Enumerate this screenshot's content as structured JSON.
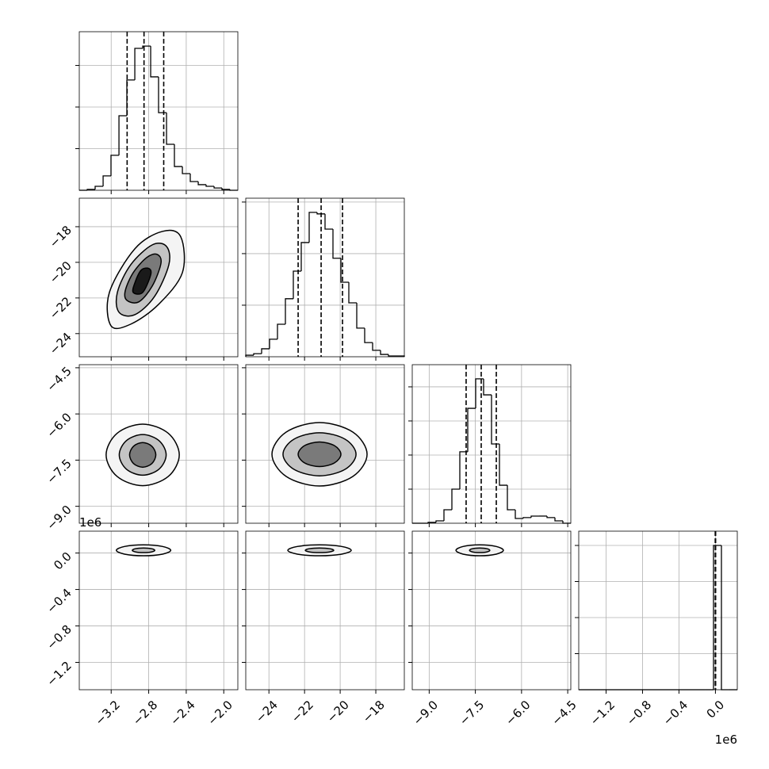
{
  "chart_data": {
    "type": "corner",
    "color": "#000000",
    "params": [
      {
        "lim": [
          -3.54,
          -1.85
        ],
        "ticks": [
          {
            "value": -3.2,
            "label": "−3.2"
          },
          {
            "value": -2.8,
            "label": "−2.8"
          },
          {
            "value": -2.4,
            "label": "−2.4"
          },
          {
            "value": -2.0,
            "label": "−2.0"
          }
        ]
      },
      {
        "lim": [
          -25.3,
          -16.4
        ],
        "ticks": [
          {
            "value": -24,
            "label": "−24"
          },
          {
            "value": -22,
            "label": "−22"
          },
          {
            "value": -20,
            "label": "−20"
          },
          {
            "value": -18,
            "label": "−18"
          }
        ]
      },
      {
        "lim": [
          -9.55,
          -4.4
        ],
        "ticks": [
          {
            "value": -9.0,
            "label": "−9.0"
          },
          {
            "value": -7.5,
            "label": "−7.5"
          },
          {
            "value": -6.0,
            "label": "−6.0"
          },
          {
            "value": -4.5,
            "label": "−4.5"
          }
        ]
      },
      {
        "lim": [
          -1.5,
          0.24
        ],
        "ticks": [
          {
            "value": -1.2,
            "label": "−1.2"
          },
          {
            "value": -0.8,
            "label": "−0.8"
          },
          {
            "value": -0.4,
            "label": "−0.4"
          },
          {
            "value": 0,
            "label": "0.0"
          }
        ],
        "x_offset": "1e6",
        "y_offset": "1e6"
      }
    ],
    "histograms": [
      {
        "bins": [
          -3.54,
          -3.455,
          -3.371,
          -3.286,
          -3.202,
          -3.117,
          -3.033,
          -2.948,
          -2.864,
          -2.779,
          -2.695,
          -2.61,
          -2.526,
          -2.441,
          -2.357,
          -2.272,
          -2.188,
          -2.103,
          -2.019,
          -1.934,
          -1.85
        ],
        "counts": [
          0,
          4,
          19,
          69,
          168,
          358,
          530,
          682,
          693,
          545,
          373,
          221,
          114,
          80,
          42,
          27,
          19,
          11,
          4,
          0
        ],
        "ylim": [
          0,
          762
        ],
        "yticks": [
          200,
          400,
          600
        ],
        "quantiles": [
          -3.03,
          -2.85,
          -2.64
        ]
      },
      {
        "bins": [
          -25.3,
          -24.855,
          -24.41,
          -23.965,
          -23.52,
          -23.075,
          -22.63,
          -22.185,
          -21.74,
          -21.295,
          -20.85,
          -20.405,
          -19.96,
          -19.515,
          -19.07,
          -18.625,
          -18.18,
          -17.735,
          -17.29,
          -16.845,
          -16.4
        ],
        "counts": [
          6,
          12,
          31,
          68,
          126,
          225,
          332,
          443,
          560,
          554,
          495,
          382,
          289,
          209,
          111,
          55,
          25,
          9,
          3,
          3
        ],
        "ylim": [
          0,
          615
        ],
        "yticks": [
          200,
          400,
          600
        ],
        "quantiles": [
          -22.36,
          -21.07,
          -19.87
        ]
      },
      {
        "bins": [
          -9.55,
          -9.2925,
          -9.035,
          -8.7775,
          -8.52,
          -8.2625,
          -8.005,
          -7.7475,
          -7.49,
          -7.2325,
          -6.975,
          -6.7175,
          -6.46,
          -6.2025,
          -5.945,
          -5.6875,
          -5.43,
          -5.1725,
          -4.915,
          -4.6575,
          -4.4
        ],
        "counts": [
          0,
          0,
          5,
          14,
          79,
          200,
          419,
          674,
          847,
          753,
          465,
          223,
          79,
          28,
          33,
          42,
          42,
          33,
          14,
          0
        ],
        "ylim": [
          0,
          930
        ],
        "yticks": [
          200,
          400,
          600,
          800
        ],
        "quantiles": [
          -7.8,
          -7.31,
          -6.82
        ]
      },
      {
        "bins": [
          -1.5,
          -1.413,
          -1.326,
          -1.239,
          -1.152,
          -1.065,
          -0.978,
          -0.891,
          -0.804,
          -0.717,
          -0.63,
          -0.543,
          -0.456,
          -0.369,
          -0.282,
          -0.195,
          -0.108,
          -0.021,
          0.066,
          0.153,
          0.24
        ],
        "counts": [
          0,
          0,
          0,
          0,
          0,
          0,
          0,
          0,
          0,
          0,
          0,
          0,
          0,
          0,
          0,
          0,
          0,
          4000,
          0,
          0
        ],
        "ylim": [
          0,
          4396
        ],
        "yticks": [
          1000,
          2000,
          3000,
          4000
        ],
        "quantiles": [
          -0.002,
          0,
          0.002
        ]
      }
    ],
    "pairs": [
      {
        "contours": [
          {
            "x": [
              -3.202,
              -2.991,
              -2.695,
              -2.441,
              -2.458,
              -2.652,
              -2.948,
              -3.219
            ],
            "y": [
              -23.56,
              -23.47,
              -22.36,
              -20.58,
              -18.57,
              -18.26,
              -19.24,
              -21.69
            ]
          },
          {
            "x": [
              -3.117,
              -2.948,
              -2.737,
              -2.585,
              -2.61,
              -2.762,
              -2.991,
              -3.134
            ],
            "y": [
              -22.8,
              -22.94,
              -21.91,
              -20.13,
              -19.11,
              -19.02,
              -20.13,
              -21.69
            ]
          },
          {
            "x": [
              -3.033,
              -2.906,
              -2.762,
              -2.669,
              -2.712,
              -2.821,
              -2.965,
              -3.05
            ],
            "y": [
              -22.13,
              -22.22,
              -21.33,
              -20.04,
              -19.55,
              -19.73,
              -20.58,
              -21.6
            ]
          },
          {
            "x": [
              -2.965,
              -2.864,
              -2.779,
              -2.796,
              -2.881,
              -2.948
            ],
            "y": [
              -21.69,
              -21.69,
              -20.71,
              -20.35,
              -20.44,
              -21.16
            ]
          }
        ]
      },
      {
        "contours": [
          {
            "x": [
              -2.474,
              -2.591,
              -2.864,
              -3.137,
              -3.254,
              -3.137,
              -2.864,
              -2.591
            ],
            "y": [
              -7.33,
              -6.63,
              -6.33,
              -6.63,
              -7.33,
              -8.03,
              -8.33,
              -8.03
            ]
          },
          {
            "x": [
              -2.614,
              -2.689,
              -2.864,
              -3.039,
              -3.114,
              -3.039,
              -2.864,
              -2.689
            ],
            "y": [
              -7.33,
              -6.87,
              -6.67,
              -6.87,
              -7.33,
              -7.79,
              -7.99,
              -7.79
            ]
          },
          {
            "x": [
              -2.724,
              -2.766,
              -2.864,
              -2.962,
              -3.004,
              -2.962,
              -2.864,
              -2.766
            ],
            "y": [
              -7.33,
              -7.05,
              -6.93,
              -7.05,
              -7.33,
              -7.61,
              -7.73,
              -7.61
            ]
          }
        ]
      },
      {
        "contours": [
          {
            "x": [
              -18.49,
              -19.29,
              -21.16,
              -23.03,
              -23.83,
              -23.03,
              -21.16,
              -19.29
            ],
            "y": [
              -7.31,
              -6.59,
              -6.28,
              -6.59,
              -7.31,
              -8.03,
              -8.34,
              -8.03
            ]
          },
          {
            "x": [
              -19.11,
              -19.725,
              -21.16,
              -22.595,
              -23.21,
              -22.595,
              -21.16,
              -19.725
            ],
            "y": [
              -7.31,
              -6.82,
              -6.61,
              -6.82,
              -7.31,
              -7.8,
              -8.01,
              -7.8
            ]
          },
          {
            "x": [
              -19.96,
              -20.32,
              -21.16,
              -22.0,
              -22.36,
              -22.0,
              -21.16,
              -20.32
            ],
            "y": [
              -7.31,
              -7.03,
              -6.91,
              -7.03,
              -7.31,
              -7.59,
              -7.71,
              -7.59
            ]
          }
        ]
      },
      {
        "contours": [
          {
            "x": [
              -2.565,
              -2.652,
              -2.855,
              -3.058,
              -3.145,
              -3.058,
              -2.855,
              -2.652
            ],
            "y": [
              0.03,
              0.072,
              0.09,
              0.072,
              0.03,
              -0.012,
              -0.03,
              -0.012
            ]
          },
          {
            "x": [
              -2.735,
              -2.771,
              -2.855,
              -2.939,
              -2.975,
              -2.939,
              -2.855,
              -2.771
            ],
            "y": [
              0.03,
              0.048,
              0.055,
              0.048,
              0.03,
              0.012,
              0.005,
              0.012
            ]
          }
        ]
      },
      {
        "contours": [
          {
            "x": [
              -19.38,
              -19.914,
              -21.16,
              -22.406,
              -22.94,
              -22.406,
              -21.16,
              -19.914
            ],
            "y": [
              0.03,
              0.072,
              0.09,
              0.072,
              0.03,
              -0.012,
              -0.03,
              -0.012
            ]
          },
          {
            "x": [
              -20.36,
              -20.6,
              -21.16,
              -21.72,
              -21.96,
              -21.72,
              -21.16,
              -20.6
            ],
            "y": [
              0.03,
              0.048,
              0.055,
              0.048,
              0.03,
              0.012,
              0.005,
              0.012
            ]
          }
        ]
      },
      {
        "contours": [
          {
            "x": [
              -6.59,
              -6.821,
              -7.36,
              -7.899,
              -8.13,
              -7.899,
              -7.36,
              -6.821
            ],
            "y": [
              0.03,
              0.072,
              0.09,
              0.072,
              0.03,
              -0.012,
              -0.03,
              -0.012
            ]
          },
          {
            "x": [
              -7.03,
              -7.129,
              -7.36,
              -7.591,
              -7.69,
              -7.591,
              -7.36,
              -7.129
            ],
            "y": [
              0.03,
              0.048,
              0.055,
              0.048,
              0.03,
              0.012,
              0.005,
              0.012
            ]
          }
        ]
      }
    ]
  }
}
